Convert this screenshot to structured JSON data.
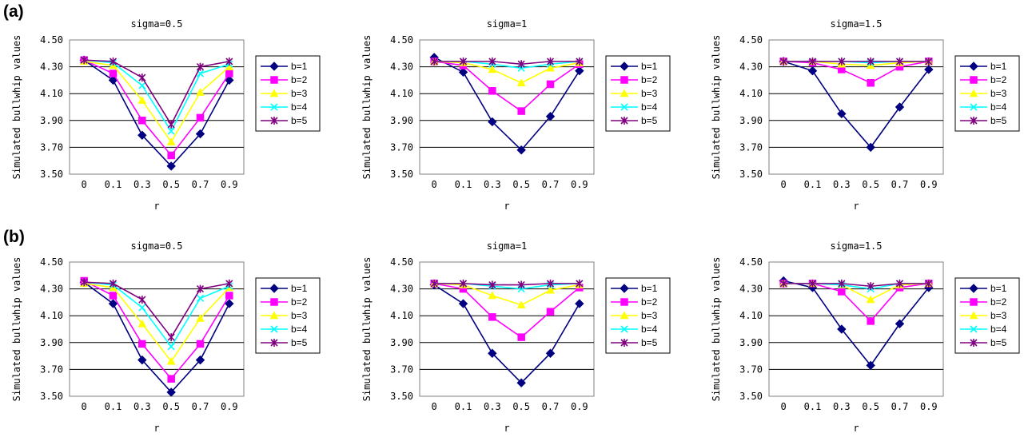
{
  "panel_labels": [
    "(a)",
    "(b)"
  ],
  "colors": {
    "series": [
      "#000080",
      "#FF00FF",
      "#FFFF00",
      "#00FFFF",
      "#800080"
    ],
    "plot_area_border": "#808080",
    "gridline": "#000000"
  },
  "chart_data": [
    {
      "type": "line",
      "panel": "(a)",
      "title": "sigma=0.5",
      "xlabel": "r",
      "ylabel": "Simulated bullwhip values",
      "categories": [
        "0",
        "0.1",
        "0.3",
        "0.5",
        "0.7",
        "0.9"
      ],
      "ylim": [
        3.5,
        4.5
      ],
      "yticks": [
        "3.50",
        "3.70",
        "3.90",
        "4.10",
        "4.30",
        "4.50"
      ],
      "grid": "horizontal",
      "legend_position": "right",
      "series": [
        {
          "name": "b=1",
          "marker": "diamond",
          "values": [
            4.35,
            4.2,
            3.79,
            3.56,
            3.8,
            4.2
          ]
        },
        {
          "name": "b=2",
          "marker": "square",
          "values": [
            4.35,
            4.25,
            3.9,
            3.64,
            3.92,
            4.25
          ]
        },
        {
          "name": "b=3",
          "marker": "triangle",
          "values": [
            4.34,
            4.31,
            4.05,
            3.74,
            4.11,
            4.3
          ]
        },
        {
          "name": "b=4",
          "marker": "x",
          "values": [
            4.35,
            4.33,
            4.16,
            3.82,
            4.25,
            4.32
          ]
        },
        {
          "name": "b=5",
          "marker": "star",
          "values": [
            4.35,
            4.34,
            4.22,
            3.87,
            4.3,
            4.34
          ]
        }
      ]
    },
    {
      "type": "line",
      "panel": "(a)",
      "title": "sigma=1",
      "xlabel": "r",
      "ylabel": "Simulated bullwhip values",
      "categories": [
        "0",
        "0.1",
        "0.3",
        "0.5",
        "0.7",
        "0.9"
      ],
      "ylim": [
        3.5,
        4.5
      ],
      "yticks": [
        "3.50",
        "3.70",
        "3.90",
        "4.10",
        "4.30",
        "4.50"
      ],
      "grid": "horizontal",
      "legend_position": "right",
      "series": [
        {
          "name": "b=1",
          "marker": "diamond",
          "values": [
            4.37,
            4.26,
            3.89,
            3.68,
            3.93,
            4.27
          ]
        },
        {
          "name": "b=2",
          "marker": "square",
          "values": [
            4.34,
            4.31,
            4.12,
            3.97,
            4.17,
            4.32
          ]
        },
        {
          "name": "b=3",
          "marker": "triangle",
          "values": [
            4.34,
            4.33,
            4.28,
            4.18,
            4.29,
            4.33
          ]
        },
        {
          "name": "b=4",
          "marker": "x",
          "values": [
            4.34,
            4.34,
            4.32,
            4.29,
            4.32,
            4.34
          ]
        },
        {
          "name": "b=5",
          "marker": "star",
          "values": [
            4.34,
            4.34,
            4.34,
            4.32,
            4.34,
            4.34
          ]
        }
      ]
    },
    {
      "type": "line",
      "panel": "(a)",
      "title": "sigma=1.5",
      "xlabel": "r",
      "ylabel": "Simulated bullwhip values",
      "categories": [
        "0",
        "0.1",
        "0.3",
        "0.5",
        "0.7",
        "0.9"
      ],
      "ylim": [
        3.5,
        4.5
      ],
      "yticks": [
        "3.50",
        "3.70",
        "3.90",
        "4.10",
        "4.30",
        "4.50"
      ],
      "grid": "horizontal",
      "legend_position": "right",
      "series": [
        {
          "name": "b=1",
          "marker": "diamond",
          "values": [
            4.34,
            4.27,
            3.95,
            3.7,
            4.0,
            4.28
          ]
        },
        {
          "name": "b=2",
          "marker": "square",
          "values": [
            4.34,
            4.33,
            4.28,
            4.18,
            4.3,
            4.34
          ]
        },
        {
          "name": "b=3",
          "marker": "triangle",
          "values": [
            4.34,
            4.34,
            4.32,
            4.31,
            4.33,
            4.34
          ]
        },
        {
          "name": "b=4",
          "marker": "x",
          "values": [
            4.34,
            4.34,
            4.34,
            4.33,
            4.34,
            4.34
          ]
        },
        {
          "name": "b=5",
          "marker": "star",
          "values": [
            4.34,
            4.34,
            4.34,
            4.34,
            4.34,
            4.34
          ]
        }
      ]
    },
    {
      "type": "line",
      "panel": "(b)",
      "title": "sigma=0.5",
      "xlabel": "r",
      "ylabel": "Simulated bullwhip values",
      "categories": [
        "0",
        "0.1",
        "0.3",
        "0.5",
        "0.7",
        "0.9"
      ],
      "ylim": [
        3.5,
        4.5
      ],
      "yticks": [
        "3.50",
        "3.70",
        "3.90",
        "4.10",
        "4.30",
        "4.50"
      ],
      "grid": "horizontal",
      "legend_position": "right",
      "series": [
        {
          "name": "b=1",
          "marker": "diamond",
          "values": [
            4.35,
            4.19,
            3.77,
            3.53,
            3.77,
            4.19
          ]
        },
        {
          "name": "b=2",
          "marker": "square",
          "values": [
            4.36,
            4.25,
            3.89,
            3.63,
            3.89,
            4.25
          ]
        },
        {
          "name": "b=3",
          "marker": "triangle",
          "values": [
            4.34,
            4.31,
            4.04,
            3.76,
            4.08,
            4.31
          ]
        },
        {
          "name": "b=4",
          "marker": "x",
          "values": [
            4.35,
            4.33,
            4.16,
            3.87,
            4.23,
            4.32
          ]
        },
        {
          "name": "b=5",
          "marker": "star",
          "values": [
            4.35,
            4.34,
            4.22,
            3.94,
            4.3,
            4.34
          ]
        }
      ]
    },
    {
      "type": "line",
      "panel": "(b)",
      "title": "sigma=1",
      "xlabel": "r",
      "ylabel": "Simulated bullwhip values",
      "categories": [
        "0",
        "0.1",
        "0.3",
        "0.5",
        "0.7",
        "0.9"
      ],
      "ylim": [
        3.5,
        4.5
      ],
      "yticks": [
        "3.50",
        "3.70",
        "3.90",
        "4.10",
        "4.30",
        "4.50"
      ],
      "grid": "horizontal",
      "legend_position": "right",
      "series": [
        {
          "name": "b=1",
          "marker": "diamond",
          "values": [
            4.33,
            4.19,
            3.82,
            3.6,
            3.82,
            4.19
          ]
        },
        {
          "name": "b=2",
          "marker": "square",
          "values": [
            4.34,
            4.3,
            4.09,
            3.94,
            4.13,
            4.31
          ]
        },
        {
          "name": "b=3",
          "marker": "triangle",
          "values": [
            4.34,
            4.33,
            4.25,
            4.18,
            4.29,
            4.33
          ]
        },
        {
          "name": "b=4",
          "marker": "x",
          "values": [
            4.34,
            4.34,
            4.32,
            4.3,
            4.33,
            4.34
          ]
        },
        {
          "name": "b=5",
          "marker": "star",
          "values": [
            4.34,
            4.34,
            4.33,
            4.33,
            4.34,
            4.34
          ]
        }
      ]
    },
    {
      "type": "line",
      "panel": "(b)",
      "title": "sigma=1.5",
      "xlabel": "r",
      "ylabel": "Simulated bullwhip values",
      "categories": [
        "0",
        "0.1",
        "0.3",
        "0.5",
        "0.7",
        "0.9"
      ],
      "ylim": [
        3.5,
        4.5
      ],
      "yticks": [
        "3.50",
        "3.70",
        "3.90",
        "4.10",
        "4.30",
        "4.50"
      ],
      "grid": "horizontal",
      "legend_position": "right",
      "series": [
        {
          "name": "b=1",
          "marker": "diamond",
          "values": [
            4.36,
            4.31,
            4.0,
            3.73,
            4.04,
            4.31
          ]
        },
        {
          "name": "b=2",
          "marker": "square",
          "values": [
            4.34,
            4.34,
            4.28,
            4.06,
            4.31,
            4.34
          ]
        },
        {
          "name": "b=3",
          "marker": "triangle",
          "values": [
            4.34,
            4.34,
            4.33,
            4.22,
            4.33,
            4.34
          ]
        },
        {
          "name": "b=4",
          "marker": "x",
          "values": [
            4.34,
            4.34,
            4.33,
            4.3,
            4.34,
            4.34
          ]
        },
        {
          "name": "b=5",
          "marker": "star",
          "values": [
            4.34,
            4.34,
            4.34,
            4.32,
            4.34,
            4.34
          ]
        }
      ]
    }
  ]
}
